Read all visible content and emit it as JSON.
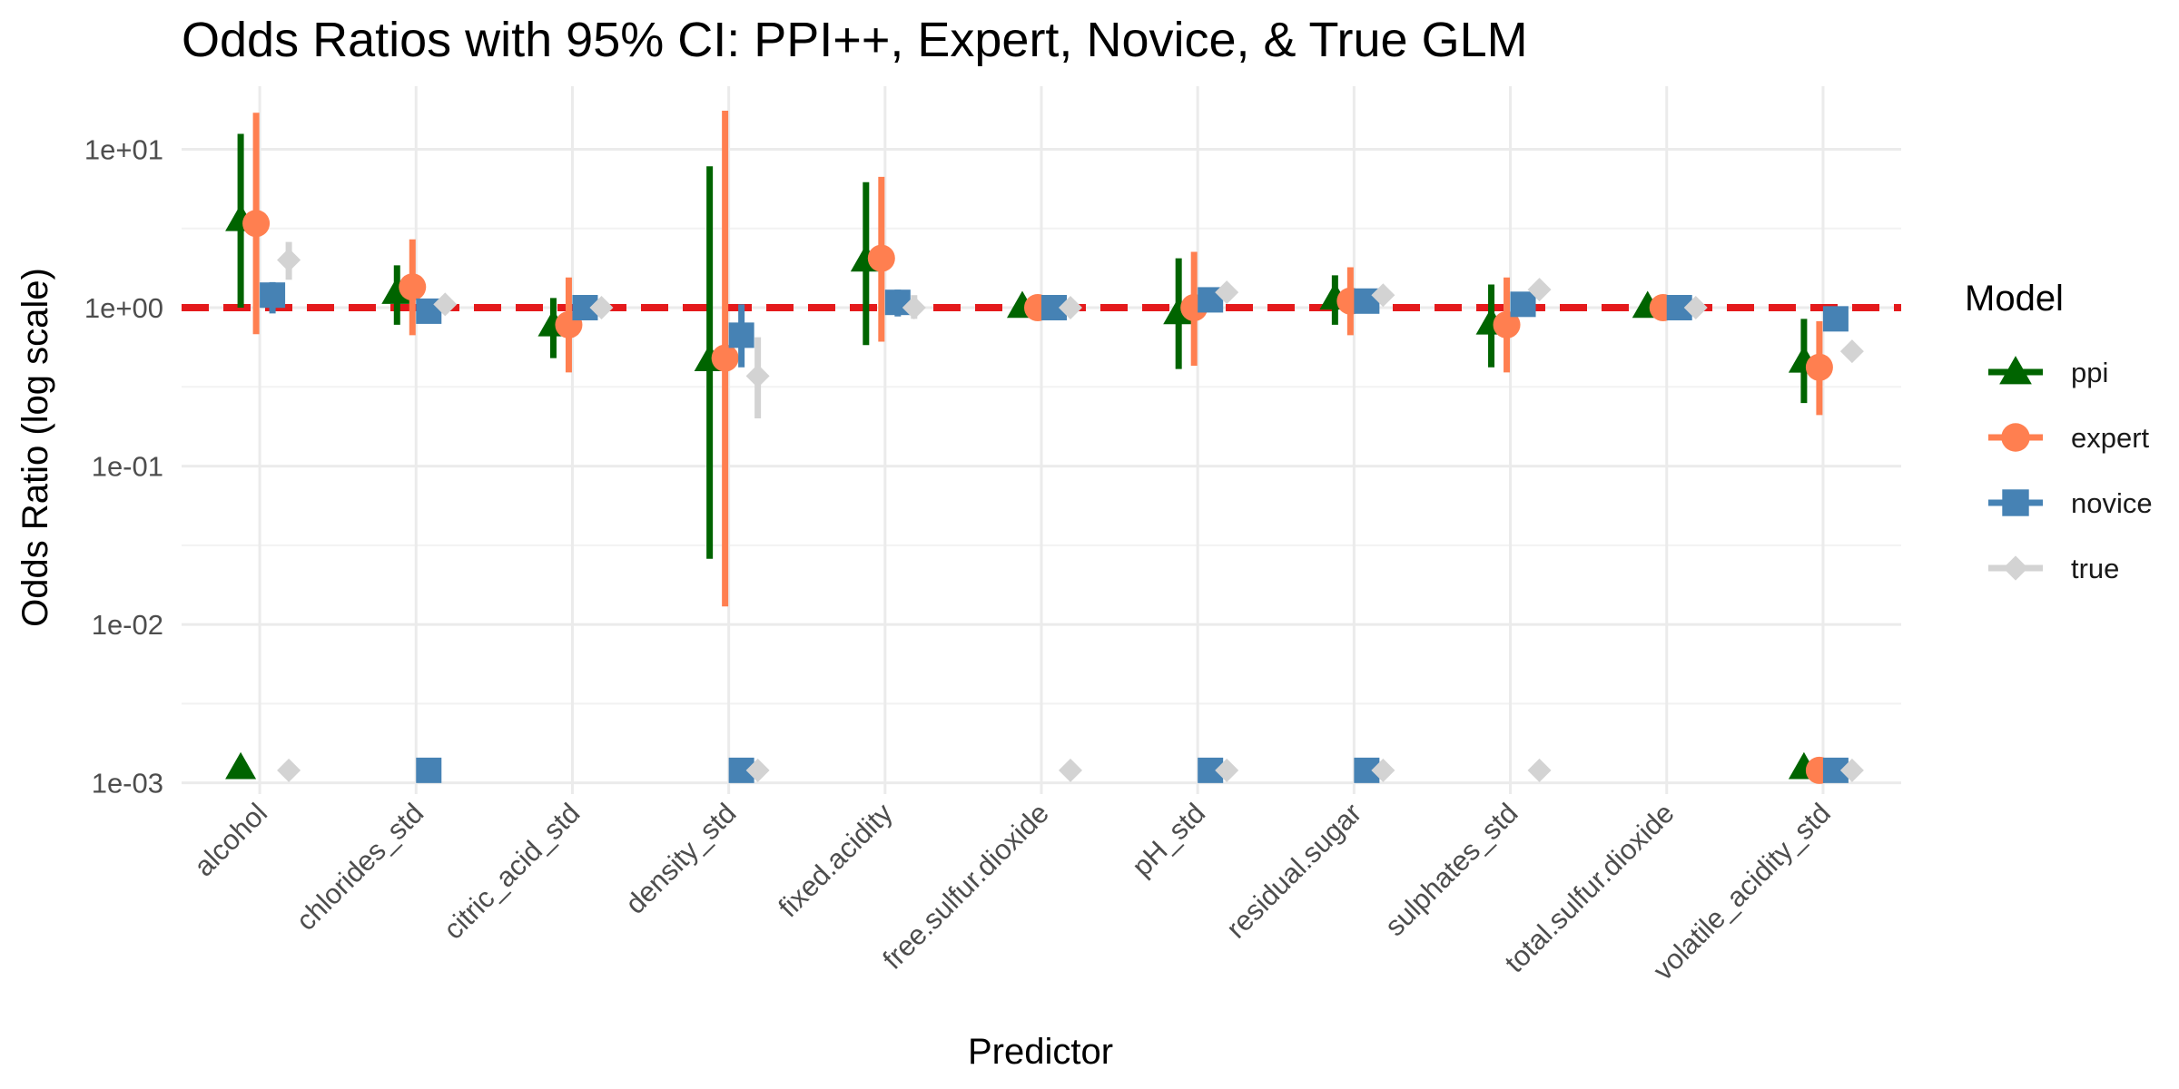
{
  "chart_data": {
    "type": "scatter",
    "title": "Odds Ratios with 95% CI: PPI++, Expert, Novice, & True GLM",
    "xlabel": "Predictor",
    "ylabel": "Odds Ratio (log scale)",
    "y_scale": "log10",
    "ylim": [
      0.00085,
      25
    ],
    "y_ticks": [
      {
        "value": 0.001,
        "label": "1e-03"
      },
      {
        "value": 0.01,
        "label": "1e-02"
      },
      {
        "value": 0.1,
        "label": "1e-01"
      },
      {
        "value": 1,
        "label": "1e+00"
      },
      {
        "value": 10,
        "label": "1e+01"
      }
    ],
    "categories": [
      "alcohol",
      "chlorides_std",
      "citric_acid_std",
      "density_std",
      "fixed.acidity",
      "free.sulfur.dioxide",
      "pH_std",
      "residual.sugar",
      "sulphates_std",
      "total.sulfur.dioxide",
      "volatile_acidity_std"
    ],
    "reference_line": {
      "value": 1,
      "color": "#e41a1c",
      "style": "dashed"
    },
    "legend": {
      "title": "Model",
      "position": "right"
    },
    "grid": true,
    "series": [
      {
        "name": "ppi",
        "color": "#006400",
        "marker": "triangle",
        "points": [
          {
            "x": "alcohol",
            "y": 3.6,
            "lower": 1.0,
            "upper": 12.5
          },
          {
            "x": "alcohol",
            "y": 0.00125
          },
          {
            "x": "chlorides_std",
            "y": 1.25,
            "lower": 0.78,
            "upper": 1.85
          },
          {
            "x": "citric_acid_std",
            "y": 0.78,
            "lower": 0.48,
            "upper": 1.15
          },
          {
            "x": "density_std",
            "y": 0.47,
            "lower": 0.026,
            "upper": 7.8
          },
          {
            "x": "fixed.acidity",
            "y": 2.0,
            "lower": 0.58,
            "upper": 6.2
          },
          {
            "x": "free.sulfur.dioxide",
            "y": 1.02,
            "lower": 0.97,
            "upper": 1.07
          },
          {
            "x": "pH_std",
            "y": 0.93,
            "lower": 0.41,
            "upper": 2.05
          },
          {
            "x": "residual.sugar",
            "y": 1.15,
            "lower": 0.78,
            "upper": 1.6
          },
          {
            "x": "sulphates_std",
            "y": 0.8,
            "lower": 0.42,
            "upper": 1.4
          },
          {
            "x": "total.sulfur.dioxide",
            "y": 1.02,
            "lower": 0.99,
            "upper": 1.05
          },
          {
            "x": "volatile_acidity_std",
            "y": 0.46,
            "lower": 0.25,
            "upper": 0.85
          },
          {
            "x": "volatile_acidity_std",
            "y": 0.00125
          }
        ]
      },
      {
        "name": "expert",
        "color": "#ff7f50",
        "marker": "circle",
        "points": [
          {
            "x": "alcohol",
            "y": 3.4,
            "lower": 0.68,
            "upper": 17.0
          },
          {
            "x": "chlorides_std",
            "y": 1.35,
            "lower": 0.67,
            "upper": 2.7
          },
          {
            "x": "citric_acid_std",
            "y": 0.78,
            "lower": 0.39,
            "upper": 1.55
          },
          {
            "x": "density_std",
            "y": 0.48,
            "lower": 0.013,
            "upper": 17.5
          },
          {
            "x": "fixed.acidity",
            "y": 2.05,
            "lower": 0.61,
            "upper": 6.7
          },
          {
            "x": "free.sulfur.dioxide",
            "y": 1.0,
            "lower": 0.97,
            "upper": 1.03
          },
          {
            "x": "pH_std",
            "y": 1.0,
            "lower": 0.43,
            "upper": 2.25
          },
          {
            "x": "residual.sugar",
            "y": 1.1,
            "lower": 0.67,
            "upper": 1.8
          },
          {
            "x": "sulphates_std",
            "y": 0.78,
            "lower": 0.39,
            "upper": 1.55
          },
          {
            "x": "total.sulfur.dioxide",
            "y": 1.0,
            "lower": 0.98,
            "upper": 1.02
          },
          {
            "x": "volatile_acidity_std",
            "y": 0.42,
            "lower": 0.21,
            "upper": 0.82
          },
          {
            "x": "volatile_acidity_std",
            "y": 0.0012
          }
        ]
      },
      {
        "name": "novice",
        "color": "#4682b4",
        "marker": "square",
        "points": [
          {
            "x": "alcohol",
            "y": 1.2,
            "lower": 0.92,
            "upper": 1.45
          },
          {
            "x": "chlorides_std",
            "y": 0.0012
          },
          {
            "x": "chlorides_std",
            "y": 0.95
          },
          {
            "x": "citric_acid_std",
            "y": 1.0
          },
          {
            "x": "density_std",
            "y": 0.0012
          },
          {
            "x": "density_std",
            "y": 0.67,
            "lower": 0.42,
            "upper": 1.05
          },
          {
            "x": "fixed.acidity",
            "y": 1.08,
            "lower": 0.88,
            "upper": 1.3
          },
          {
            "x": "free.sulfur.dioxide",
            "y": 1.0,
            "lower": 0.97,
            "upper": 1.03
          },
          {
            "x": "pH_std",
            "y": 0.0012
          },
          {
            "x": "pH_std",
            "y": 1.12,
            "lower": 0.95,
            "upper": 1.32
          },
          {
            "x": "residual.sugar",
            "y": 0.0012
          },
          {
            "x": "residual.sugar",
            "y": 1.1,
            "lower": 0.95,
            "upper": 1.25
          },
          {
            "x": "sulphates_std",
            "y": 1.05,
            "lower": 0.9,
            "upper": 1.2
          },
          {
            "x": "total.sulfur.dioxide",
            "y": 1.0
          },
          {
            "x": "volatile_acidity_std",
            "y": 0.0012
          },
          {
            "x": "volatile_acidity_std",
            "y": 0.85,
            "lower": 0.72,
            "upper": 0.98
          }
        ]
      },
      {
        "name": "true",
        "color": "#d3d3d3",
        "marker": "diamond",
        "points": [
          {
            "x": "alcohol",
            "y": 0.0012
          },
          {
            "x": "alcohol",
            "y": 2.0,
            "lower": 1.5,
            "upper": 2.6
          },
          {
            "x": "chlorides_std",
            "y": 1.05,
            "lower": 0.92,
            "upper": 1.15
          },
          {
            "x": "citric_acid_std",
            "y": 1.0,
            "lower": 0.9,
            "upper": 1.1
          },
          {
            "x": "density_std",
            "y": 0.0012
          },
          {
            "x": "density_std",
            "y": 0.37,
            "lower": 0.2,
            "upper": 0.65
          },
          {
            "x": "fixed.acidity",
            "y": 1.0,
            "lower": 0.85,
            "upper": 1.2
          },
          {
            "x": "free.sulfur.dioxide",
            "y": 0.0012
          },
          {
            "x": "free.sulfur.dioxide",
            "y": 1.0
          },
          {
            "x": "pH_std",
            "y": 0.0012
          },
          {
            "x": "pH_std",
            "y": 1.25,
            "lower": 1.1,
            "upper": 1.4
          },
          {
            "x": "residual.sugar",
            "y": 0.0012
          },
          {
            "x": "residual.sugar",
            "y": 1.2
          },
          {
            "x": "sulphates_std",
            "y": 0.0012
          },
          {
            "x": "sulphates_std",
            "y": 1.3,
            "lower": 1.15,
            "upper": 1.45
          },
          {
            "x": "total.sulfur.dioxide",
            "y": 1.0
          },
          {
            "x": "volatile_acidity_std",
            "y": 0.0012
          },
          {
            "x": "volatile_acidity_std",
            "y": 0.53,
            "lower": 0.47,
            "upper": 0.6
          }
        ]
      }
    ]
  }
}
